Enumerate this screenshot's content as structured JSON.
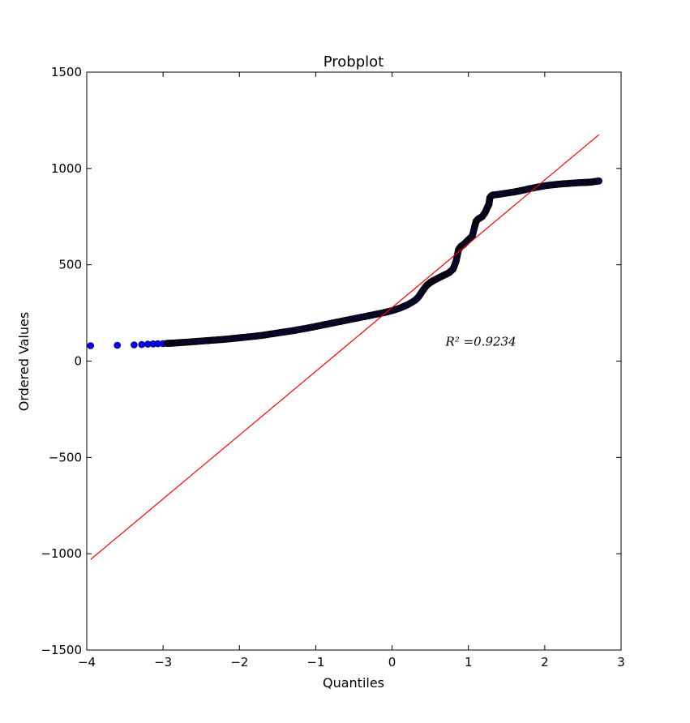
{
  "chart_data": {
    "type": "scatter",
    "title": "Probplot",
    "xlabel": "Quantiles",
    "ylabel": "Ordered Values",
    "xlim": [
      -4,
      3
    ],
    "ylim": [
      -1500,
      1500
    ],
    "xticks": [
      -4,
      -3,
      -2,
      -1,
      0,
      1,
      2,
      3
    ],
    "yticks": [
      -1500,
      -1000,
      -500,
      0,
      500,
      1000,
      1500
    ],
    "xtick_labels": [
      "−4",
      "−3",
      "−2",
      "−1",
      "0",
      "1",
      "2",
      "3"
    ],
    "ytick_labels": [
      "−1500",
      "−1000",
      "−500",
      "0",
      "500",
      "1000",
      "1500"
    ],
    "grid": false,
    "annotation": {
      "text": "R² =0.9234",
      "x": 0.7,
      "y": 100
    },
    "marker_color": "#0000ff",
    "marker_edge_color": "#000000",
    "line_color": "#ff0000",
    "fit_line": {
      "x": [
        -3.95,
        2.71
      ],
      "y": [
        -1030,
        1175
      ]
    },
    "series": [
      {
        "type": "scatter",
        "x": [
          -3.95,
          -3.6,
          -3.38,
          -3.28,
          -3.2,
          -3.13,
          -3.07,
          -3.0,
          -2.95,
          -2.9,
          -2.85,
          -2.78,
          -2.7,
          -2.6,
          -2.5,
          -2.4,
          -2.3,
          -2.2,
          -2.1,
          -2.0,
          -1.9,
          -1.8,
          -1.7,
          -1.6,
          -1.5,
          -1.4,
          -1.3,
          -1.2,
          -1.1,
          -1.0,
          -0.9,
          -0.8,
          -0.7,
          -0.6,
          -0.5,
          -0.4,
          -0.3,
          -0.2,
          -0.1,
          0.0,
          0.1,
          0.2,
          0.3,
          0.35,
          0.4,
          0.45,
          0.5,
          0.52,
          0.55,
          0.6,
          0.65,
          0.7,
          0.75,
          0.8,
          0.84,
          0.87,
          0.9,
          0.92,
          0.95,
          1.0,
          1.05,
          1.08,
          1.1,
          1.13,
          1.18,
          1.22,
          1.25,
          1.27,
          1.28,
          1.3,
          1.32,
          1.4,
          1.5,
          1.6,
          1.7,
          1.8,
          1.9,
          2.0,
          2.1,
          2.2,
          2.3,
          2.4,
          2.5,
          2.55,
          2.6,
          2.65,
          2.71
        ],
        "y": [
          80,
          82,
          84,
          86,
          88,
          89,
          90,
          91,
          92,
          93,
          94,
          96,
          98,
          101,
          104,
          107,
          110,
          113,
          117,
          121,
          125,
          129,
          134,
          140,
          146,
          152,
          158,
          165,
          172,
          180,
          188,
          196,
          204,
          212,
          220,
          228,
          236,
          244,
          252,
          262,
          275,
          292,
          315,
          335,
          365,
          392,
          408,
          413,
          420,
          430,
          440,
          450,
          460,
          478,
          520,
          578,
          595,
          600,
          610,
          630,
          648,
          695,
          725,
          738,
          750,
          772,
          800,
          815,
          848,
          858,
          862,
          866,
          872,
          878,
          886,
          895,
          903,
          910,
          915,
          919,
          922,
          925,
          927,
          928,
          929,
          932,
          935
        ]
      }
    ]
  }
}
